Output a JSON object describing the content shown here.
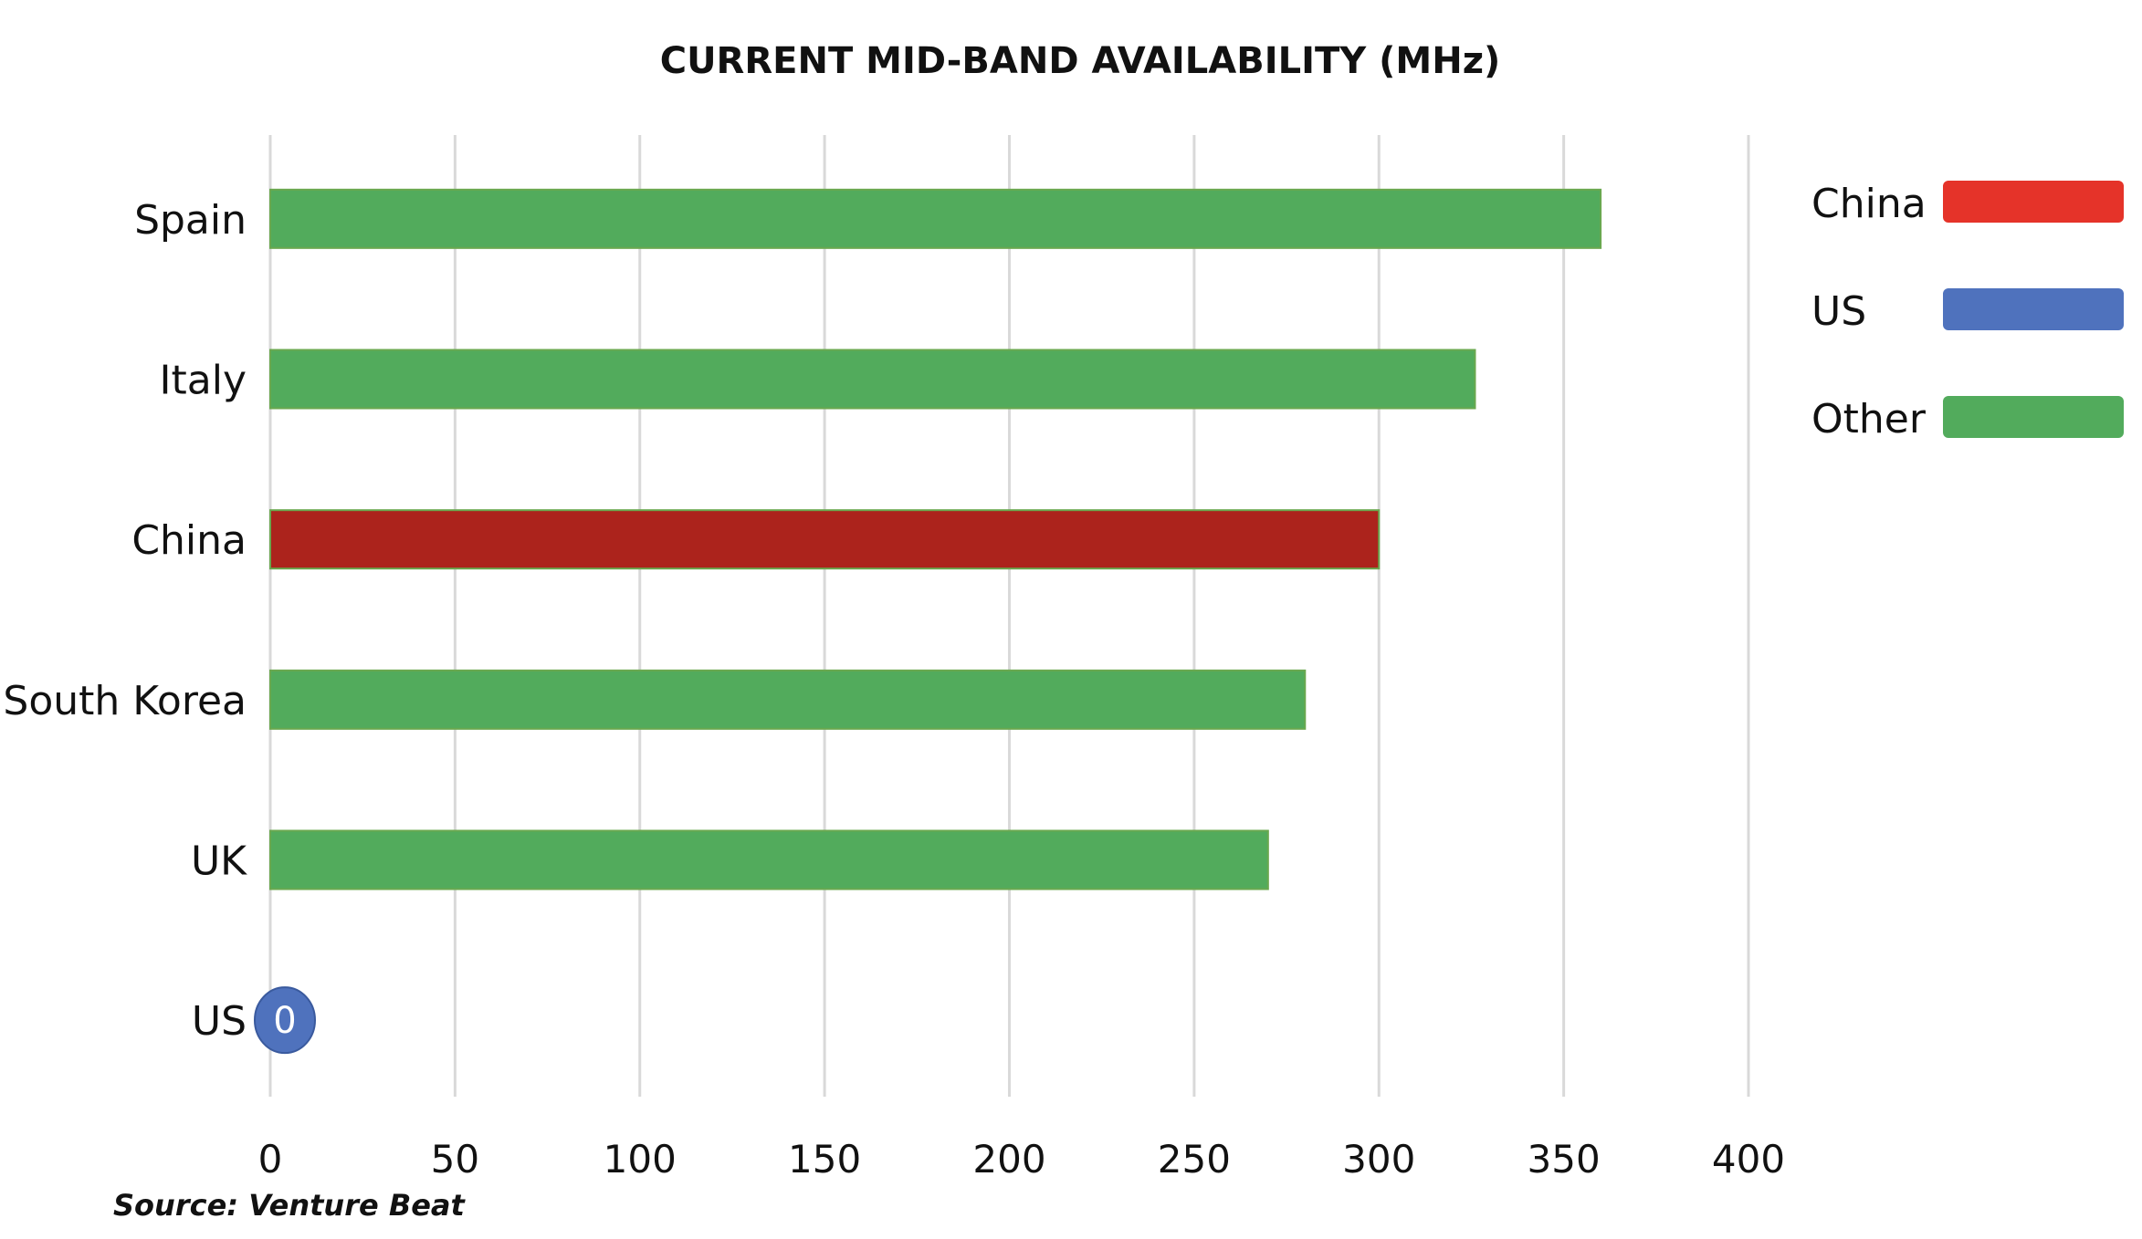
{
  "chart_data": {
    "type": "bar",
    "orientation": "horizontal",
    "title": "CURRENT MID-BAND AVAILABILITY (MHz)",
    "categories": [
      "Spain",
      "Italy",
      "China",
      "South Korea",
      "UK",
      "US"
    ],
    "values": [
      360,
      326,
      300,
      280,
      270,
      0
    ],
    "bar_groups": [
      "Other",
      "Other",
      "China",
      "Other",
      "Other",
      "US"
    ],
    "bar_colors": [
      "#52ab5c",
      "#52ab5c",
      "#ac231c",
      "#52ab5c",
      "#52ab5c",
      "#4f72bd"
    ],
    "data_labels": [
      null,
      null,
      null,
      null,
      null,
      "0"
    ],
    "xlim": [
      0,
      400
    ],
    "x_ticks": [
      0,
      50,
      100,
      150,
      200,
      250,
      300,
      350,
      400
    ],
    "grid": true,
    "legend": {
      "placement": "right",
      "items": [
        {
          "label": "China",
          "color": "#e53329"
        },
        {
          "label": "US",
          "color": "#4f72bd"
        },
        {
          "label": "Other",
          "color": "#52ab5c"
        }
      ]
    },
    "source": "Source: Venture Beat"
  }
}
